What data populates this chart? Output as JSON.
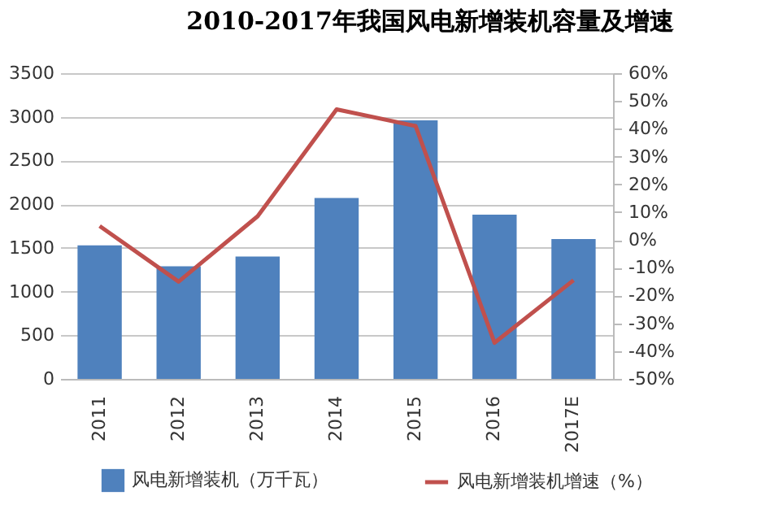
{
  "chart_data": {
    "type": "bar",
    "title": "2010-2017年我国风电新增装机容量及增速",
    "categories": [
      "2011",
      "2012",
      "2013",
      "2014",
      "2015",
      "2016",
      "2017E"
    ],
    "series": [
      {
        "name": "风电新增装机（万千瓦）",
        "color": "#4f81bd",
        "values": [
          1530,
          1290,
          1400,
          2070,
          2960,
          1880,
          1600
        ]
      },
      {
        "name": "风电新增装机增速（%）",
        "type": "line",
        "axis": "y2",
        "color": "#c0504d",
        "values": [
          5,
          -15,
          8.5,
          47,
          41,
          -37,
          -14.5
        ]
      }
    ],
    "ylim": [
      0,
      3500
    ],
    "yticks": [
      0,
      500,
      1000,
      1500,
      2000,
      2500,
      3000,
      3500
    ],
    "y2lim": [
      -50,
      60
    ],
    "y2ticks": [
      {
        "value": -50,
        "label": "-50%"
      },
      {
        "value": -40,
        "label": "-40%"
      },
      {
        "value": -30,
        "label": "-30%"
      },
      {
        "value": -20,
        "label": "-20%"
      },
      {
        "value": -10,
        "label": "-10%"
      },
      {
        "value": 0,
        "label": "0%"
      },
      {
        "value": 10,
        "label": "10%"
      },
      {
        "value": 20,
        "label": "20%"
      },
      {
        "value": 30,
        "label": "30%"
      },
      {
        "value": 40,
        "label": "40%"
      },
      {
        "value": 50,
        "label": "50%"
      },
      {
        "value": 60,
        "label": "60%"
      }
    ],
    "grid": "y",
    "legend": "bottom",
    "line_style": "solid",
    "marker": "none"
  }
}
